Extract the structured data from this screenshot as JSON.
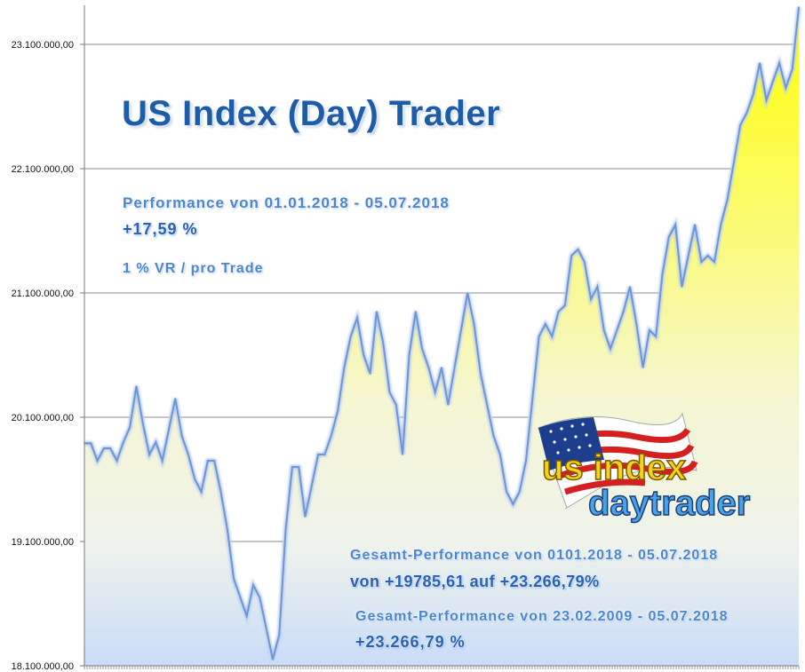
{
  "chart_data": {
    "type": "area",
    "title": "US Index (Day) Trader",
    "ylim": [
      18100000,
      23400000
    ],
    "yticks": [
      {
        "value": 18100000,
        "label": "18.100.000,00"
      },
      {
        "value": 19100000,
        "label": "19.100.000,00"
      },
      {
        "value": 20100000,
        "label": "20.100.000,00"
      },
      {
        "value": 21100000,
        "label": "21.100.000,00"
      },
      {
        "value": 22100000,
        "label": "22.100.000,00"
      },
      {
        "value": 23100000,
        "label": "23.100.000,00"
      }
    ],
    "grid": true,
    "series": [
      {
        "values": [
          19890000,
          19890000,
          19750000,
          19850000,
          19850000,
          19750000,
          19900000,
          20020000,
          20350000,
          20050000,
          19800000,
          19900000,
          19750000,
          20000000,
          20250000,
          19950000,
          19800000,
          19600000,
          19500000,
          19750000,
          19750000,
          19500000,
          19200000,
          18800000,
          18650000,
          18500000,
          18750000,
          18650000,
          18400000,
          18150000,
          18350000,
          19200000,
          19700000,
          19700000,
          19300000,
          19550000,
          19800000,
          19800000,
          19950000,
          20150000,
          20500000,
          20750000,
          20900000,
          20600000,
          20450000,
          20950000,
          20700000,
          20300000,
          20200000,
          19800000,
          20600000,
          20950000,
          20650000,
          20500000,
          20300000,
          20500000,
          20200000,
          20500000,
          20800000,
          21100000,
          20850000,
          20450000,
          20200000,
          19950000,
          19800000,
          19500000,
          19400000,
          19500000,
          19750000,
          20250000,
          20750000,
          20850000,
          20750000,
          20950000,
          21000000,
          21400000,
          21450000,
          21350000,
          21050000,
          21150000,
          20800000,
          20650000,
          20800000,
          20950000,
          21150000,
          20850000,
          20500000,
          20800000,
          20750000,
          21250000,
          21550000,
          21650000,
          21150000,
          21400000,
          21650000,
          21350000,
          21400000,
          21350000,
          21650000,
          21850000,
          22150000,
          22450000,
          22550000,
          22700000,
          22950000,
          22650000,
          22800000,
          22950000,
          22750000,
          22900000,
          23400000
        ]
      }
    ]
  },
  "labels": {
    "title": "US Index (Day) Trader",
    "perf_label": "Performance  von  01.01.2018 - 05.07.2018",
    "perf_value": "+17,59 %",
    "risk_label": "1 % VR / pro Trade",
    "ges1_label": "Gesamt-Performance  von   0101.2018 - 05.07.2018",
    "ges1_value": "von +19785,61 auf  +23.266,79%",
    "ges2_label": "Gesamt-Performance  von  23.02.2009 - 05.07.2018",
    "ges2_value": "+23.266,79 %"
  },
  "logo": {
    "line1": "us index",
    "line2": "daytrader",
    "flag_icon": "us-flag-icon"
  },
  "colors": {
    "area_top": "#ffff00",
    "area_mid": "#f6f7c8",
    "area_bottom": "#c9dcf7",
    "line": "#6f95d4",
    "text_blue": "#2a62b0"
  }
}
